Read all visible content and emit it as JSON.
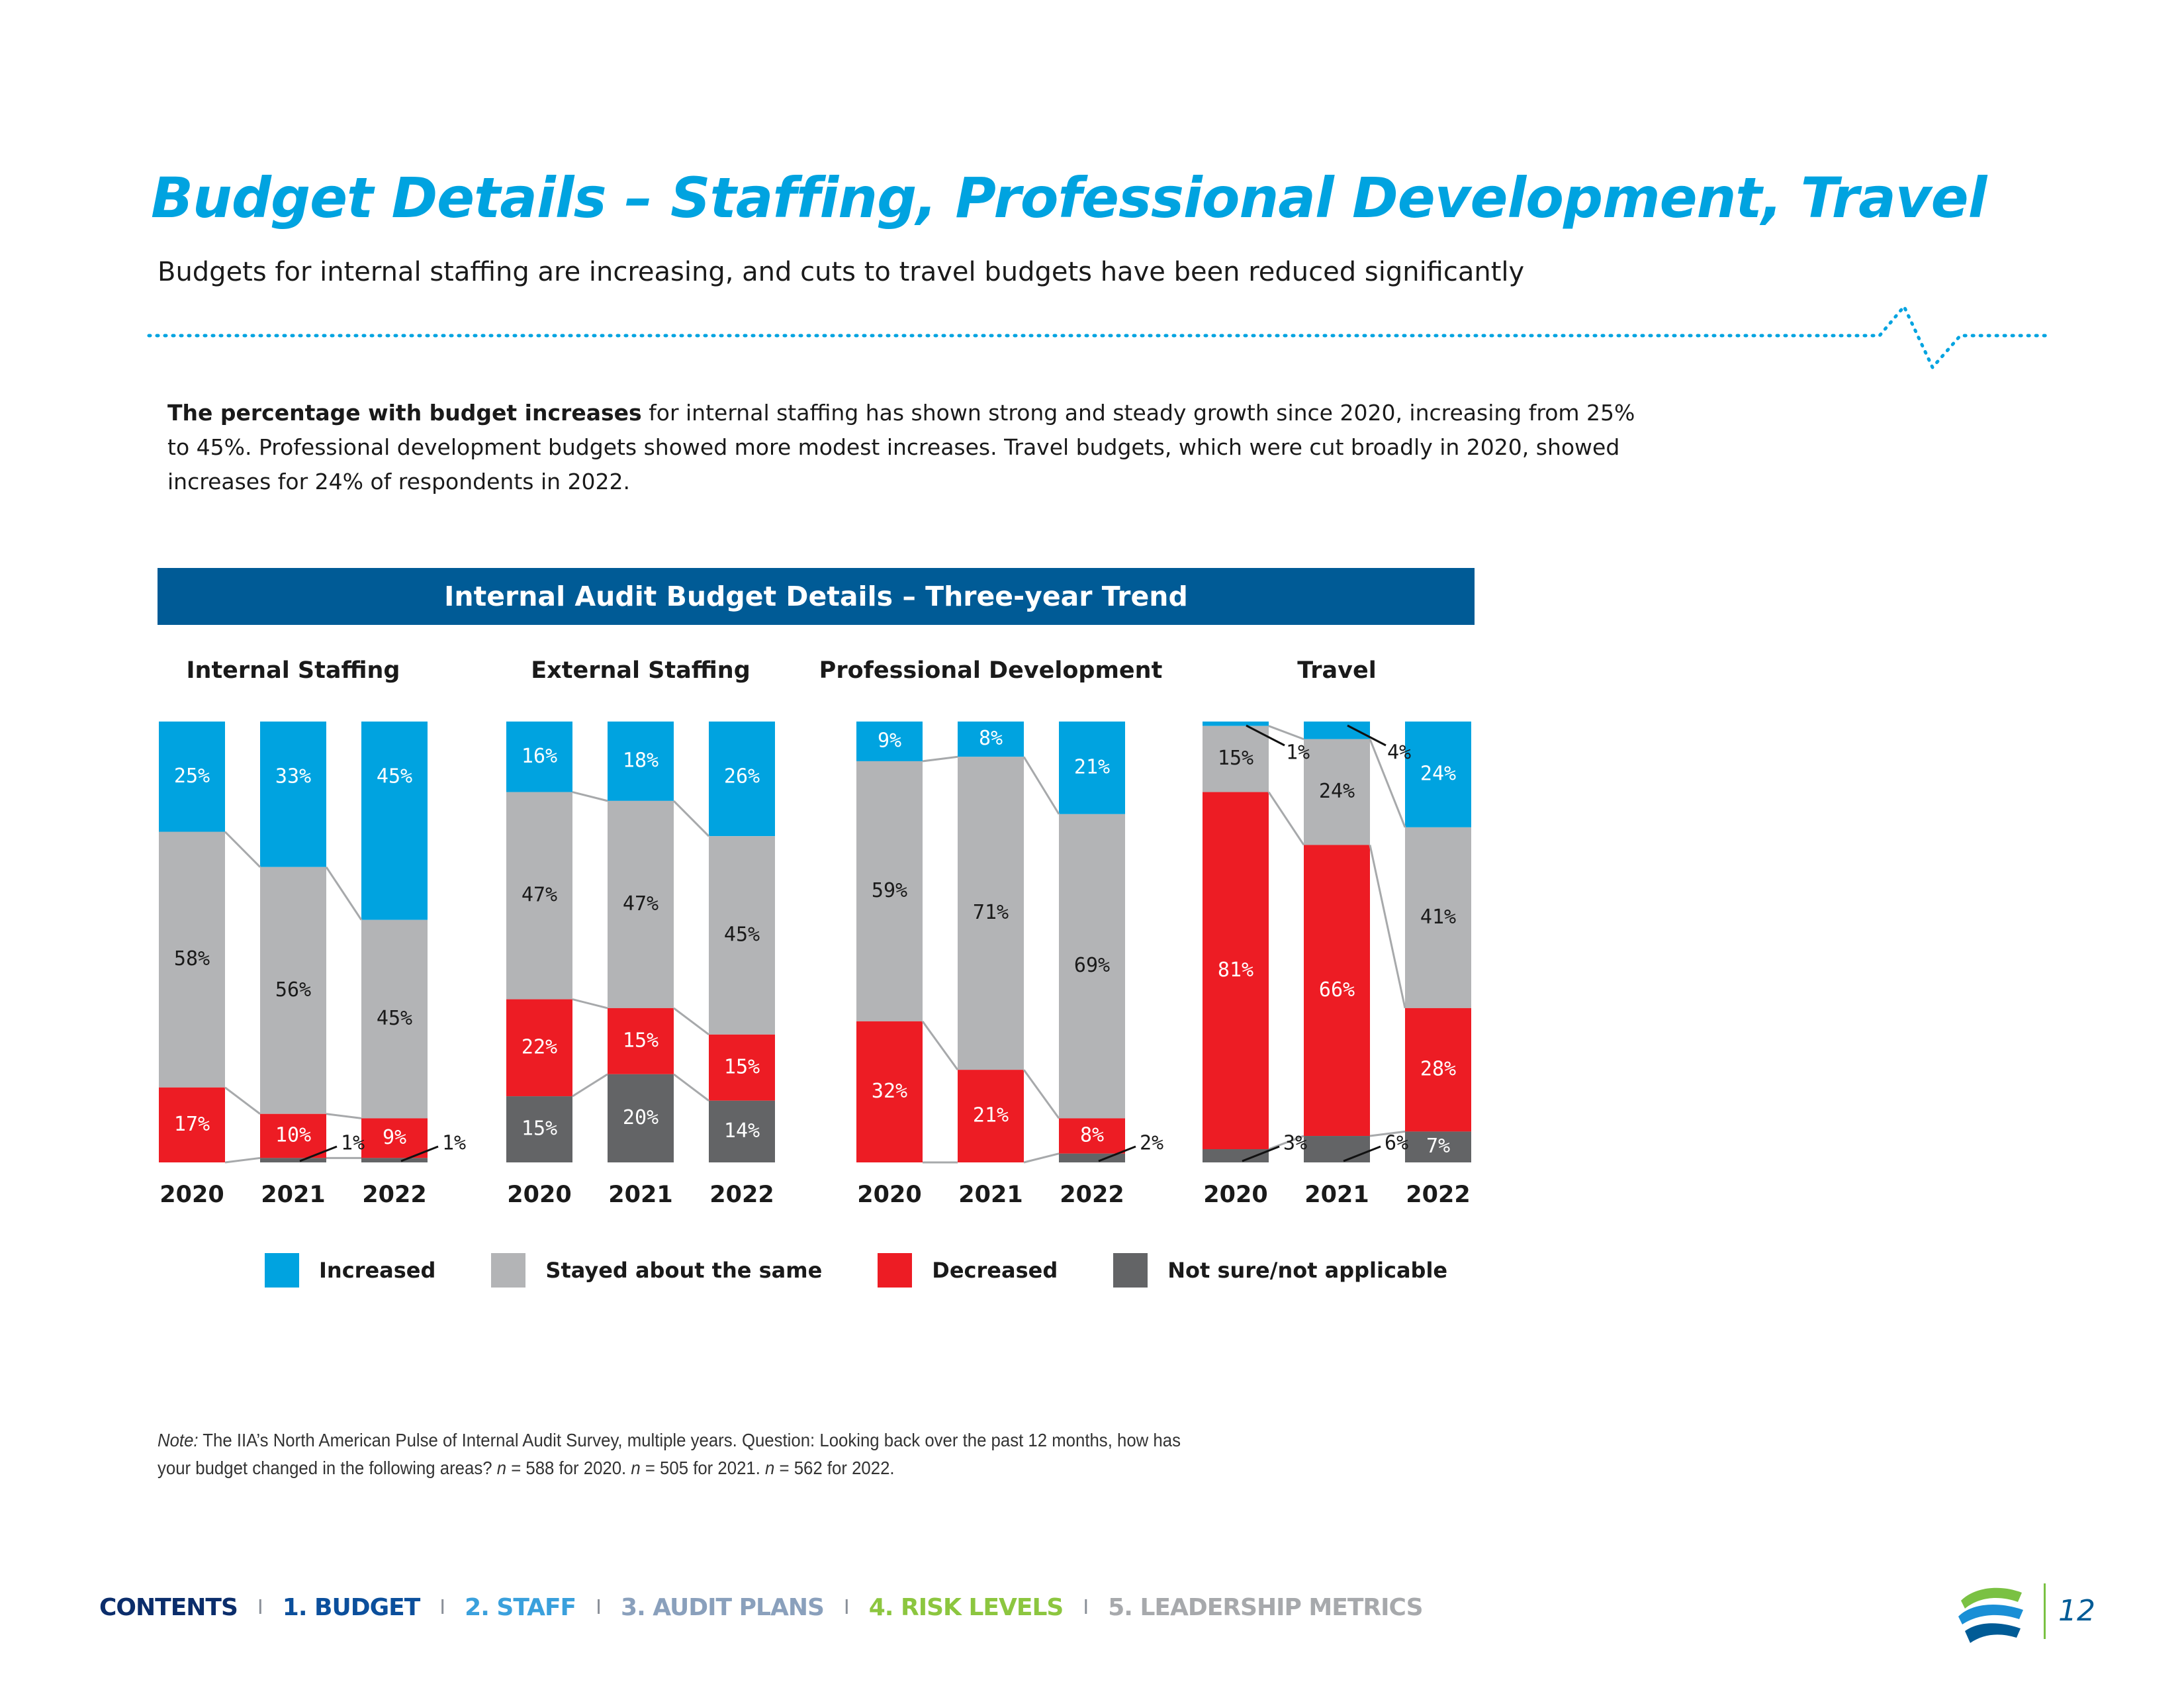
{
  "header": {
    "title": "Budget Details – Staffing, Professional Development, Travel",
    "subtitle": "Budgets for internal staffing are increasing, and cuts to travel budgets have been reduced significantly"
  },
  "intro": {
    "bold": "The percentage with budget increases",
    "text": " for internal staffing has shown strong and steady growth since 2020, increasing from 25% to 45%. Professional development budgets showed more modest increases. Travel budgets, which were cut broadly in 2020, showed increases for 24% of respondents in 2022."
  },
  "chart_header": "Internal Audit Budget Details – Three-year Trend",
  "chart_data": {
    "type": "bar",
    "stacked": true,
    "normalized": true,
    "title": "Internal Audit Budget Details – Three-year Trend",
    "categories": [
      "2020",
      "2021",
      "2022"
    ],
    "series_names": [
      "Increased",
      "Stayed about the same",
      "Decreased",
      "Not sure/not applicable"
    ],
    "colors": [
      "#00a3e0",
      "#b3b4b6",
      "#ed1c24",
      "#636466"
    ],
    "ylim": [
      0,
      100
    ],
    "legend_position": "bottom",
    "grid": false,
    "panels": [
      {
        "title": "Internal Staffing",
        "values": {
          "Increased": [
            25,
            33,
            45
          ],
          "Stayed about the same": [
            58,
            56,
            45
          ],
          "Decreased": [
            17,
            10,
            9
          ],
          "Not sure/not applicable": [
            0,
            1,
            1
          ]
        },
        "labels": {
          "Increased": [
            "25%",
            "33%",
            "45%"
          ],
          "Stayed about the same": [
            "58%",
            "56%",
            "45%"
          ],
          "Decreased": [
            "17%",
            "10%",
            "9%"
          ],
          "Not sure/not applicable": [
            "",
            "1%",
            "1%"
          ]
        }
      },
      {
        "title": "External Staffing",
        "values": {
          "Increased": [
            16,
            18,
            26
          ],
          "Stayed about the same": [
            47,
            47,
            45
          ],
          "Decreased": [
            22,
            15,
            15
          ],
          "Not sure/not applicable": [
            15,
            20,
            14
          ]
        },
        "labels": {
          "Increased": [
            "16%",
            "18%",
            "26%"
          ],
          "Stayed about the same": [
            "47%",
            "47%",
            "45%"
          ],
          "Decreased": [
            "22%",
            "15%",
            "15%"
          ],
          "Not sure/not applicable": [
            "15%",
            "20%",
            "14%"
          ]
        }
      },
      {
        "title": "Professional Development",
        "values": {
          "Increased": [
            9,
            8,
            21
          ],
          "Stayed about the same": [
            59,
            71,
            69
          ],
          "Decreased": [
            32,
            21,
            8
          ],
          "Not sure/not applicable": [
            0,
            0,
            2
          ]
        },
        "labels": {
          "Increased": [
            "9%",
            "8%",
            "21%"
          ],
          "Stayed about the same": [
            "59%",
            "71%",
            "69%"
          ],
          "Decreased": [
            "32%",
            "21%",
            "8%"
          ],
          "Not sure/not applicable": [
            "",
            "",
            "2%"
          ]
        }
      },
      {
        "title": "Travel",
        "values": {
          "Increased": [
            1,
            4,
            24
          ],
          "Stayed about the same": [
            15,
            24,
            41
          ],
          "Decreased": [
            81,
            66,
            28
          ],
          "Not sure/not applicable": [
            3,
            6,
            7
          ]
        },
        "labels": {
          "Increased": [
            "1%",
            "4%",
            "24%"
          ],
          "Stayed about the same": [
            "15%",
            "24%",
            "41%"
          ],
          "Decreased": [
            "81%",
            "66%",
            "28%"
          ],
          "Not sure/not applicable": [
            "3%",
            "6%",
            "7%"
          ]
        }
      }
    ]
  },
  "legend": [
    {
      "label": "Increased",
      "color": "#00a3e0"
    },
    {
      "label": "Stayed about the same",
      "color": "#b3b4b6"
    },
    {
      "label": "Decreased",
      "color": "#ed1c24"
    },
    {
      "label": "Not sure/not applicable",
      "color": "#636466"
    }
  ],
  "note": {
    "label": "Note:",
    "text_a": " The IIA’s North American Pulse of Internal Audit Survey, multiple years. Question: Looking back over the past 12 months, how has your budget changed in the following areas? ",
    "n1": "n",
    "text_b": " = 588 for 2020. ",
    "n2": "n",
    "text_c": " = 505 for 2021. ",
    "n3": "n",
    "text_d": " = 562 for 2022."
  },
  "footer": {
    "nav": [
      {
        "label": "CONTENTS",
        "color": "#0b2d6b"
      },
      {
        "label": "1. BUDGET",
        "color": "#0b4f9c"
      },
      {
        "label": "2. STAFF",
        "color": "#3aa0dc"
      },
      {
        "label": "3. AUDIT PLANS",
        "color": "#8aa0bc"
      },
      {
        "label": "4. RISK LEVELS",
        "color": "#8cc63f"
      },
      {
        "label": "5. LEADERSHIP METRICS",
        "color": "#a7a9ac"
      }
    ],
    "separator": "I",
    "page_number": "12"
  }
}
